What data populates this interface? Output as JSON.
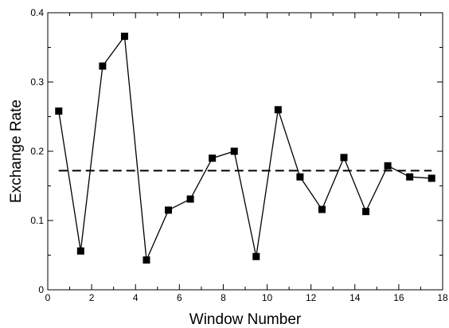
{
  "chart_data": {
    "type": "line",
    "title": "",
    "xlabel": "Window Number",
    "ylabel": "Exchange Rate",
    "xlim": [
      0,
      18
    ],
    "ylim": [
      0,
      0.4
    ],
    "x_ticks": [
      0,
      2,
      4,
      6,
      8,
      10,
      12,
      14,
      16,
      18
    ],
    "y_ticks": [
      0,
      0.1,
      0.2,
      0.3,
      0.4
    ],
    "x_tick_labels": [
      "0",
      "2",
      "4",
      "6",
      "8",
      "10",
      "12",
      "14",
      "16",
      "18"
    ],
    "y_tick_labels": [
      "0",
      "0.1",
      "0.2",
      "0.3",
      "0.4"
    ],
    "grid": false,
    "series": [
      {
        "marker": "square",
        "color": "#000000",
        "x": [
          0.5,
          1.5,
          2.5,
          3.5,
          4.5,
          5.5,
          6.5,
          7.5,
          8.5,
          9.5,
          10.5,
          11.5,
          12.5,
          13.5,
          14.5,
          15.5,
          16.5,
          17.5
        ],
        "y": [
          0.258,
          0.056,
          0.323,
          0.366,
          0.043,
          0.115,
          0.131,
          0.19,
          0.2,
          0.048,
          0.26,
          0.163,
          0.116,
          0.191,
          0.113,
          0.179,
          0.163,
          0.161
        ]
      }
    ],
    "reference_line": {
      "y": 0.172,
      "x_range": [
        0.5,
        17.5
      ],
      "style": "dashed",
      "color": "#000000"
    }
  }
}
